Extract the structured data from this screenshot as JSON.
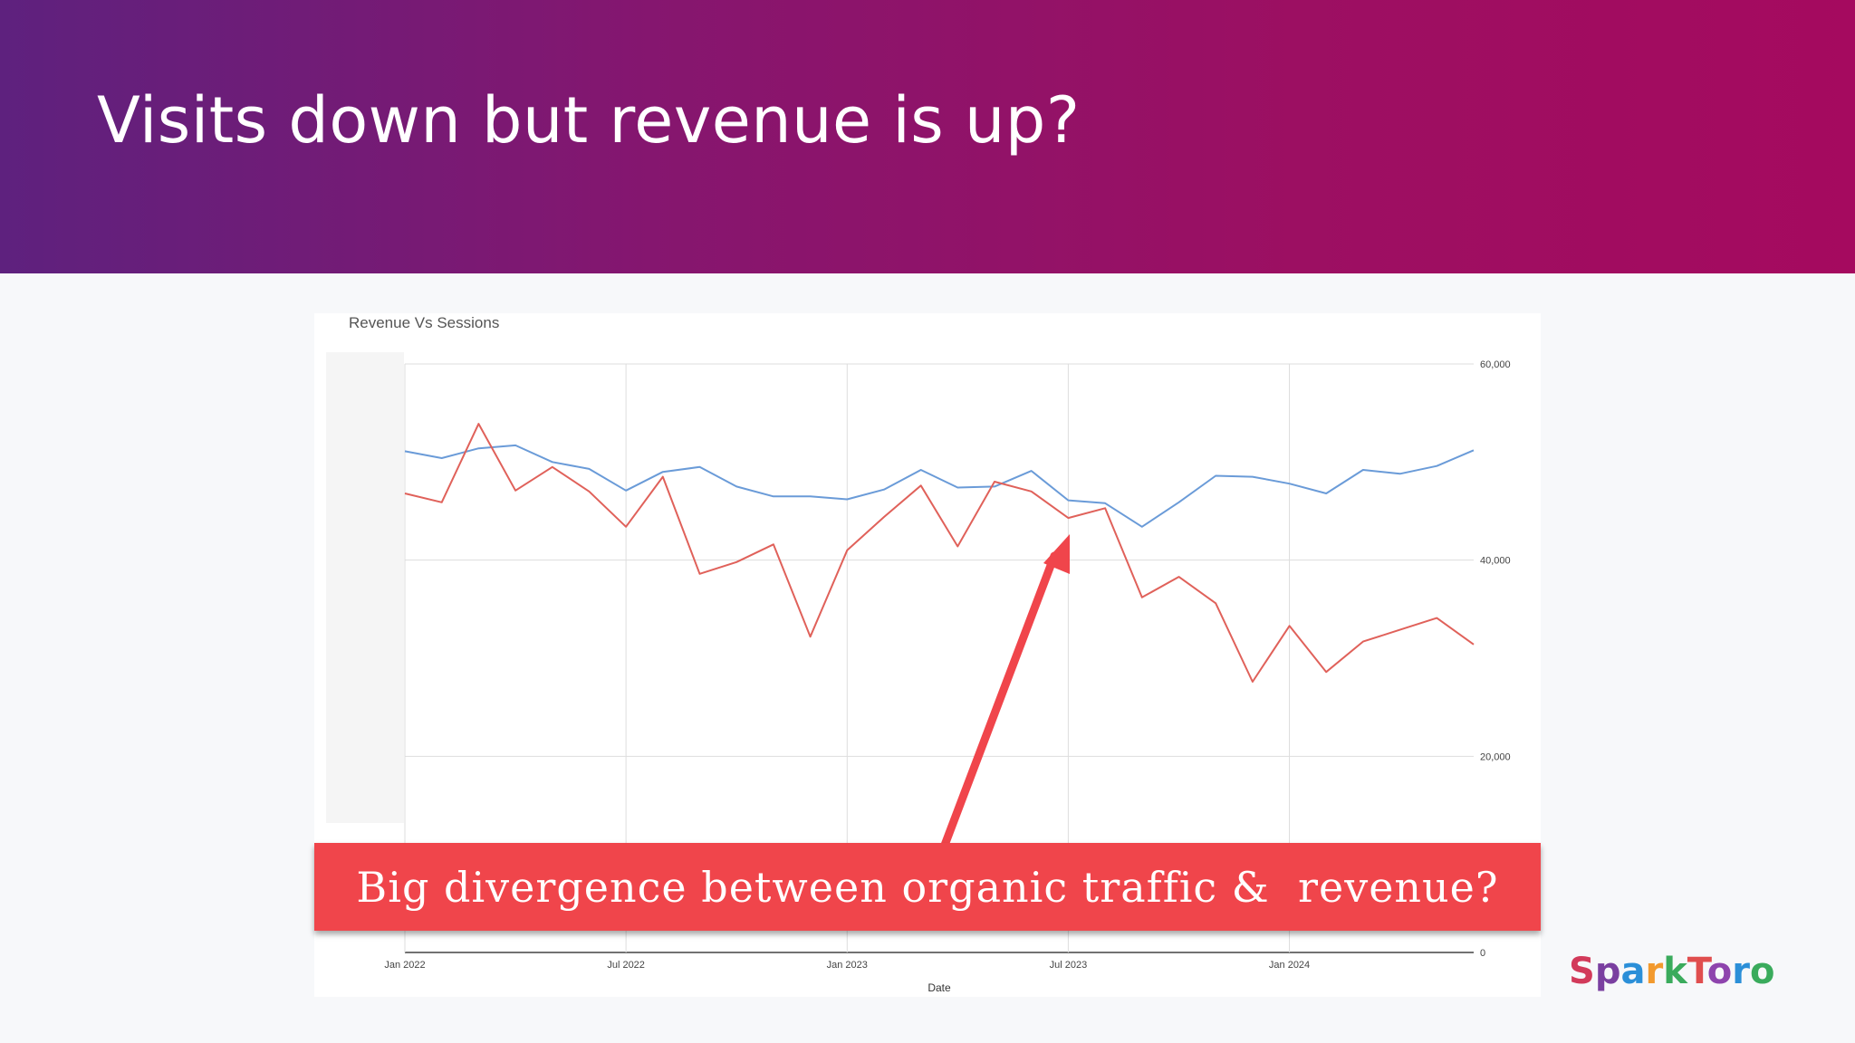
{
  "slide": {
    "title": "Visits down but revenue is up?",
    "callout": "Big divergence between organic traffic &  revenue?",
    "logo": "SparkToro",
    "colors": {
      "header_start": "#5e217e",
      "header_end": "#a50a5f",
      "callout": "#f0454b",
      "arrow": "#f0454b"
    }
  },
  "chart_data": {
    "type": "line",
    "title": "Revenue Vs Sessions",
    "xlabel": "Date",
    "ylabel": "",
    "ylim": [
      0,
      60000
    ],
    "yticks": [
      0,
      20000,
      40000,
      60000
    ],
    "ytick_labels": [
      "0",
      "20,000",
      "40,000",
      "60,000"
    ],
    "xtick_labels": [
      "Jan 2022",
      "Jul 2022",
      "Jan 2023",
      "Jul 2023",
      "Jan 2024"
    ],
    "grid": true,
    "legend": "none",
    "x": [
      "2022-01",
      "2022-02",
      "2022-03",
      "2022-04",
      "2022-05",
      "2022-06",
      "2022-07",
      "2022-08",
      "2022-09",
      "2022-10",
      "2022-11",
      "2022-12",
      "2023-01",
      "2023-02",
      "2023-03",
      "2023-04",
      "2023-05",
      "2023-06",
      "2023-07",
      "2023-08",
      "2023-09",
      "2023-10",
      "2023-11",
      "2023-12",
      "2024-01",
      "2024-02",
      "2024-03",
      "2024-04",
      "2024-05",
      "2024-06"
    ],
    "series": [
      {
        "color": "#6a9bd8",
        "values": [
          51100,
          50400,
          51400,
          51700,
          50000,
          49300,
          47100,
          49000,
          49500,
          47500,
          46500,
          46500,
          46200,
          47200,
          49200,
          47400,
          47500,
          49100,
          46100,
          45800,
          43400,
          45900,
          48600,
          48500,
          47800,
          46800,
          49200,
          48800,
          49600,
          51200
        ]
      },
      {
        "color": "#e0615a",
        "values": [
          46800,
          45900,
          53900,
          47100,
          49500,
          47000,
          43400,
          48500,
          38600,
          39800,
          41600,
          32200,
          41000,
          44400,
          47600,
          41400,
          48000,
          47000,
          44300,
          45300,
          36200,
          38300,
          35600,
          27600,
          33300,
          28600,
          31700,
          32900,
          34100,
          31400
        ]
      }
    ]
  }
}
